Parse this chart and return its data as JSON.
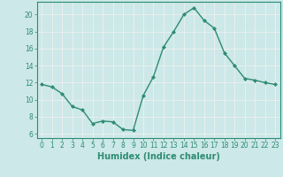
{
  "x": [
    0,
    1,
    2,
    3,
    4,
    5,
    6,
    7,
    8,
    9,
    10,
    11,
    12,
    13,
    14,
    15,
    16,
    17,
    18,
    19,
    20,
    21,
    22,
    23
  ],
  "y": [
    11.8,
    11.5,
    10.7,
    9.2,
    8.8,
    7.2,
    7.5,
    7.4,
    6.5,
    6.4,
    10.5,
    12.7,
    16.2,
    18.0,
    20.0,
    20.8,
    19.3,
    18.4,
    15.5,
    14.0,
    12.5,
    12.3,
    12.0,
    11.8
  ],
  "line_color": "#2e8b74",
  "marker": "D",
  "marker_size": 2,
  "bg_color": "#cce8e8",
  "grid_color": "#f0f0f0",
  "xlabel": "Humidex (Indice chaleur)",
  "xlim": [
    -0.5,
    23.5
  ],
  "ylim": [
    5.5,
    21.5
  ],
  "yticks": [
    6,
    8,
    10,
    12,
    14,
    16,
    18,
    20
  ],
  "xticks": [
    0,
    1,
    2,
    3,
    4,
    5,
    6,
    7,
    8,
    9,
    10,
    11,
    12,
    13,
    14,
    15,
    16,
    17,
    18,
    19,
    20,
    21,
    22,
    23
  ],
  "tick_label_fontsize": 5.5,
  "xlabel_fontsize": 7,
  "line_width": 1.0
}
